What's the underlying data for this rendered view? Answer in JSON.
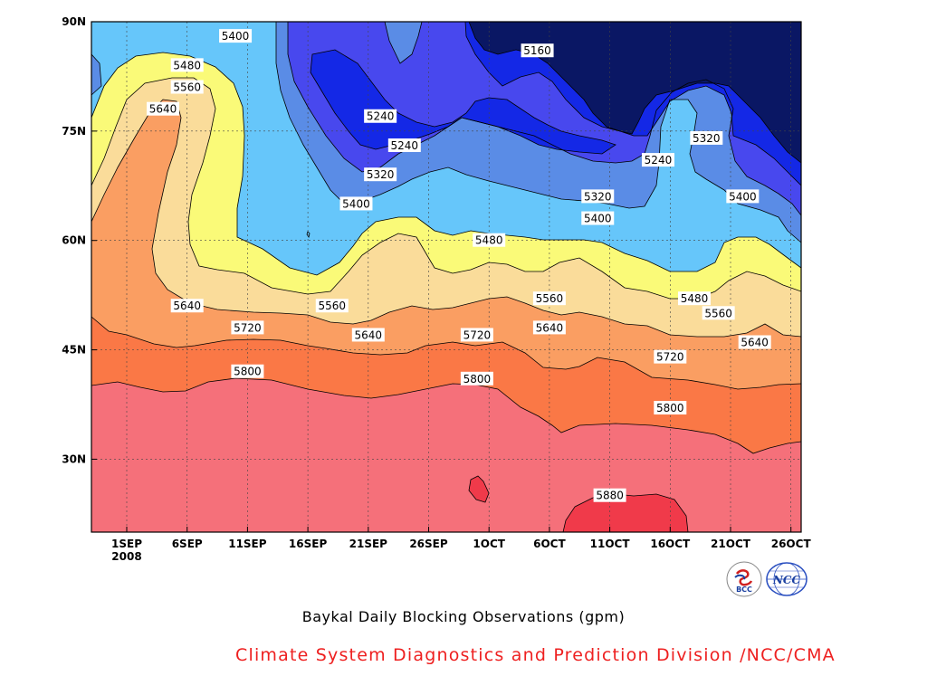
{
  "chart_data": {
    "type": "contour",
    "title": "Baykal Daily Blocking Observations (gpm)",
    "xlabel": "",
    "ylabel": "",
    "x_ticks": [
      "1SEP",
      "6SEP",
      "11SEP",
      "16SEP",
      "21SEP",
      "26SEP",
      "1OCT",
      "6OCT",
      "11OCT",
      "16OCT",
      "21OCT",
      "26OCT"
    ],
    "x_year_label": "2008",
    "y_ticks": [
      "30N",
      "45N",
      "60N",
      "75N",
      "90N"
    ],
    "ylim": [
      20,
      90
    ],
    "xlim_days_label": [
      "1SEP 2008",
      "27OCT 2008"
    ],
    "levels": [
      5160,
      5240,
      5320,
      5400,
      5480,
      5560,
      5640,
      5720,
      5800,
      5880
    ],
    "fill_colors": [
      "#0a1764",
      "#1428e6",
      "#4848ee",
      "#5a8ce6",
      "#66c6fa",
      "#fafa78",
      "#fadc9a",
      "#fa9e62",
      "#fa7846",
      "#f5707a",
      "#f03a4a"
    ],
    "contour_labels": [
      {
        "value": "5400",
        "date": "2008-09-10",
        "lat": 88
      },
      {
        "value": "5480",
        "date": "2008-09-06",
        "lat": 84
      },
      {
        "value": "5560",
        "date": "2008-09-06",
        "lat": 81
      },
      {
        "value": "5640",
        "date": "2008-09-04",
        "lat": 78
      },
      {
        "value": "5160",
        "date": "2008-10-05",
        "lat": 86
      },
      {
        "value": "5240",
        "date": "2008-09-22",
        "lat": 77
      },
      {
        "value": "5240",
        "date": "2008-09-24",
        "lat": 73
      },
      {
        "value": "5320",
        "date": "2008-09-22",
        "lat": 69
      },
      {
        "value": "5400",
        "date": "2008-09-20",
        "lat": 65
      },
      {
        "value": "5240",
        "date": "2008-10-15",
        "lat": 71
      },
      {
        "value": "5320",
        "date": "2008-10-19",
        "lat": 74
      },
      {
        "value": "5320",
        "date": "2008-10-10",
        "lat": 66
      },
      {
        "value": "5400",
        "date": "2008-10-10",
        "lat": 63
      },
      {
        "value": "5400",
        "date": "2008-10-22",
        "lat": 66
      },
      {
        "value": "5480",
        "date": "2008-10-01",
        "lat": 60
      },
      {
        "value": "5560",
        "date": "2008-09-18",
        "lat": 51
      },
      {
        "value": "5560",
        "date": "2008-10-06",
        "lat": 52
      },
      {
        "value": "5480",
        "date": "2008-10-18",
        "lat": 52
      },
      {
        "value": "5560",
        "date": "2008-10-20",
        "lat": 50
      },
      {
        "value": "5640",
        "date": "2008-09-06",
        "lat": 51
      },
      {
        "value": "5640",
        "date": "2008-09-21",
        "lat": 47
      },
      {
        "value": "5640",
        "date": "2008-10-06",
        "lat": 48
      },
      {
        "value": "5640",
        "date": "2008-10-23",
        "lat": 46
      },
      {
        "value": "5720",
        "date": "2008-09-11",
        "lat": 48
      },
      {
        "value": "5720",
        "date": "2008-09-30",
        "lat": 47
      },
      {
        "value": "5720",
        "date": "2008-10-16",
        "lat": 44
      },
      {
        "value": "5800",
        "date": "2008-09-11",
        "lat": 42
      },
      {
        "value": "5800",
        "date": "2008-09-30",
        "lat": 41
      },
      {
        "value": "5800",
        "date": "2008-10-16",
        "lat": 37
      },
      {
        "value": "5880",
        "date": "2008-10-11",
        "lat": 25
      }
    ],
    "grid": true
  },
  "footer": {
    "title": "Baykal Daily Blocking Observations (gpm)",
    "credit": "Climate System Diagnostics and Prediction Division /NCC/CMA",
    "logo_left_text": "BCC",
    "logo_right_text": "NCC"
  },
  "colors": {
    "credit": "#ee2020"
  }
}
